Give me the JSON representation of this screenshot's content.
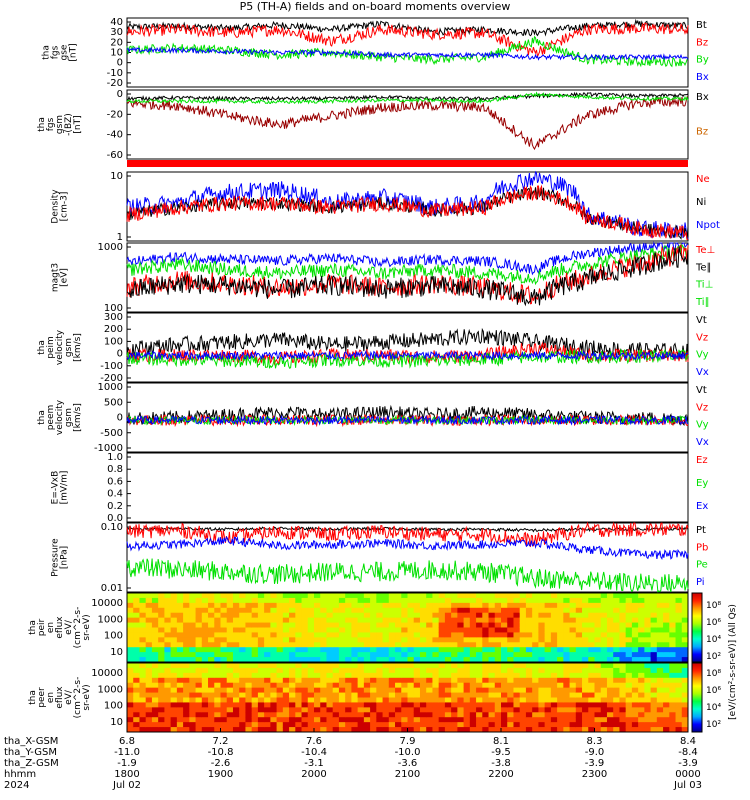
{
  "title": "P5 (TH-A) fields and on-board moments overview",
  "colors": {
    "black": "#000000",
    "red": "#ff0000",
    "green": "#00e000",
    "blue": "#0000ff",
    "darkred": "#990000",
    "orange": "#cc6600"
  },
  "chart_data": [
    {
      "type": "line",
      "panel": "fgs-gse",
      "ylabel": [
        "tha",
        "fgs",
        "gse",
        "[nT]"
      ],
      "yticks": [
        "40",
        "30",
        "20",
        "10",
        "0",
        "-10",
        "-20"
      ],
      "ylim": [
        -20,
        40
      ],
      "legend": [
        {
          "label": "Bt",
          "color": "#000000"
        },
        {
          "label": "Bz",
          "color": "#ff0000"
        },
        {
          "label": "By",
          "color": "#00e000"
        },
        {
          "label": "Bx",
          "color": "#0000ff"
        }
      ],
      "series": [
        {
          "name": "Bt",
          "color": "#000000",
          "base": [
            32,
            33,
            31,
            34,
            30,
            35,
            28,
            30,
            27,
            33,
            35,
            33
          ],
          "noise": 3
        },
        {
          "name": "Bz",
          "color": "#ff0000",
          "base": [
            28,
            30,
            27,
            30,
            20,
            30,
            26,
            27,
            10,
            30,
            31,
            30
          ],
          "noise": 5
        },
        {
          "name": "By",
          "color": "#00e000",
          "base": [
            12,
            14,
            12,
            8,
            10,
            6,
            4,
            6,
            20,
            4,
            2,
            2
          ],
          "noise": 4
        },
        {
          "name": "Bx",
          "color": "#0000ff",
          "base": [
            12,
            12,
            11,
            10,
            10,
            8,
            8,
            8,
            6,
            6,
            6,
            6
          ],
          "noise": 2
        }
      ]
    },
    {
      "type": "line",
      "panel": "fgs-gsm",
      "ylabel": [
        "tha",
        "fgs",
        "gsm",
        "-(BZ)",
        "[nT]"
      ],
      "yticks": [
        "0",
        "-20",
        "-40",
        "-60"
      ],
      "ylim": [
        -70,
        10
      ],
      "legend": [
        {
          "label": "Bx",
          "color": "#000000"
        },
        {
          "label": "Bz",
          "color": "#cc6600"
        }
      ],
      "series": [
        {
          "name": "Bx",
          "color": "#000000",
          "base": [
            0,
            1,
            0,
            0,
            0,
            2,
            0,
            0,
            3,
            5,
            3,
            4
          ],
          "noise": 2
        },
        {
          "name": "Bz",
          "color": "#990000",
          "base": [
            -5,
            -8,
            -20,
            -30,
            -20,
            -10,
            -8,
            -10,
            -55,
            -20,
            -5,
            -3
          ],
          "noise": 6
        },
        {
          "name": "Bz2",
          "color": "#00e000",
          "base": [
            -3,
            -3,
            -3,
            -4,
            -3,
            -2,
            -2,
            -3,
            5,
            2,
            0,
            0
          ],
          "noise": 2
        }
      ]
    },
    {
      "type": "line",
      "panel": "density",
      "ylabel": [
        "Density",
        "[cm-3]"
      ],
      "yticks": [
        "10",
        "1"
      ],
      "ylim": [
        0.1,
        50
      ],
      "log": true,
      "legend": [
        {
          "label": "Ne",
          "color": "#ff0000"
        },
        {
          "label": "Ni",
          "color": "#000000"
        },
        {
          "label": "Npot",
          "color": "#0000ff"
        }
      ],
      "series": [
        {
          "name": "Npot",
          "color": "#0000ff",
          "base": [
            2,
            3,
            8,
            10,
            3,
            5,
            2,
            3,
            30,
            1,
            0.3,
            0.25
          ],
          "noise": 0.35
        },
        {
          "name": "Ni",
          "color": "#000000",
          "base": [
            1,
            2,
            3,
            3,
            2,
            3,
            1.5,
            2,
            8,
            0.8,
            0.3,
            0.2
          ],
          "noise": 0.25
        },
        {
          "name": "Ne",
          "color": "#ff0000",
          "base": [
            1,
            2,
            3,
            3,
            2,
            3,
            1.5,
            2,
            8,
            0.8,
            0.3,
            0.2
          ],
          "noise": 0.3
        }
      ]
    },
    {
      "type": "line",
      "panel": "temperature",
      "ylabel": [
        "magt3",
        "[eV]"
      ],
      "yticks": [
        "1000",
        "100"
      ],
      "ylim": [
        30,
        3000
      ],
      "log": true,
      "legend": [
        {
          "label": "Te⊥",
          "color": "#ff0000"
        },
        {
          "label": "Te∥",
          "color": "#000000"
        },
        {
          "label": "Ti⊥",
          "color": "#00e000"
        },
        {
          "label": "Ti∥",
          "color": "#00e000"
        }
      ],
      "series": [
        {
          "name": "Ti",
          "color": "#0000ff",
          "base": [
            800,
            1200,
            1000,
            900,
            1100,
            800,
            1000,
            900,
            500,
            1500,
            2200,
            2500
          ],
          "noise": 0.15
        },
        {
          "name": "Ti2",
          "color": "#00e000",
          "base": [
            500,
            700,
            500,
            400,
            500,
            400,
            500,
            400,
            300,
            700,
            1300,
            1800
          ],
          "noise": 0.2
        },
        {
          "name": "Te",
          "color": "#ff0000",
          "base": [
            150,
            250,
            200,
            150,
            200,
            150,
            200,
            150,
            80,
            300,
            700,
            1500
          ],
          "noise": 0.3
        },
        {
          "name": "Te2",
          "color": "#000000",
          "base": [
            120,
            200,
            180,
            130,
            180,
            140,
            170,
            140,
            70,
            250,
            600,
            1300
          ],
          "noise": 0.3
        }
      ]
    },
    {
      "type": "line",
      "panel": "peim-velocity",
      "ylabel": [
        "tha",
        "peim",
        "velocity",
        "gsm",
        "[km/s]"
      ],
      "yticks": [
        "300",
        "200",
        "100",
        "0",
        "-100",
        "-200"
      ],
      "ylim": [
        -200,
        320
      ],
      "legend": [
        {
          "label": "Vt",
          "color": "#000000"
        },
        {
          "label": "Vz",
          "color": "#ff0000"
        },
        {
          "label": "Vy",
          "color": "#00e000"
        },
        {
          "label": "Vx",
          "color": "#0000ff"
        }
      ],
      "series": [
        {
          "name": "Vt",
          "color": "#000000",
          "base": [
            50,
            80,
            100,
            120,
            80,
            100,
            120,
            150,
            100,
            60,
            40,
            30
          ],
          "noise": 60
        },
        {
          "name": "Vz",
          "color": "#ff0000",
          "base": [
            0,
            0,
            0,
            -20,
            0,
            0,
            -10,
            0,
            60,
            0,
            0,
            0
          ],
          "noise": 50
        },
        {
          "name": "Vy",
          "color": "#00e000",
          "base": [
            -20,
            -30,
            -40,
            -50,
            -30,
            -40,
            -40,
            -30,
            -10,
            -10,
            -5,
            -5
          ],
          "noise": 50
        },
        {
          "name": "Vx",
          "color": "#0000ff",
          "base": [
            0,
            0,
            0,
            0,
            0,
            0,
            0,
            0,
            0,
            0,
            0,
            0
          ],
          "noise": 30
        }
      ]
    },
    {
      "type": "line",
      "panel": "peem-velocity",
      "ylabel": [
        "tha",
        "peem",
        "velocity",
        "gsm",
        "[km/s]"
      ],
      "yticks": [
        "1000",
        "500",
        "0",
        "-500",
        "-1000"
      ],
      "ylim": [
        -1200,
        1400
      ],
      "legend": [
        {
          "label": "Vt",
          "color": "#000000"
        },
        {
          "label": "Vz",
          "color": "#ff0000"
        },
        {
          "label": "Vy",
          "color": "#00e000"
        },
        {
          "label": "Vx",
          "color": "#0000ff"
        }
      ],
      "series": [
        {
          "name": "Vt",
          "color": "#000000",
          "base": [
            50,
            100,
            200,
            300,
            200,
            300,
            200,
            300,
            200,
            100,
            80,
            60
          ],
          "noise": 250
        },
        {
          "name": "Vz",
          "color": "#ff0000",
          "base": [
            0,
            0,
            0,
            0,
            0,
            0,
            0,
            0,
            0,
            0,
            0,
            0
          ],
          "noise": 200
        },
        {
          "name": "Vy",
          "color": "#00e000",
          "base": [
            0,
            0,
            0,
            0,
            0,
            0,
            0,
            0,
            0,
            0,
            0,
            0
          ],
          "noise": 150
        },
        {
          "name": "Vx",
          "color": "#0000ff",
          "base": [
            0,
            0,
            0,
            0,
            0,
            0,
            0,
            0,
            0,
            0,
            0,
            0
          ],
          "noise": 150
        }
      ]
    },
    {
      "type": "line",
      "panel": "efield",
      "ylabel": [
        "E=-VxB",
        "[mV/m]"
      ],
      "yticks": [
        "1.0",
        "0.8",
        "0.6",
        "0.4",
        "0.2",
        "0.0"
      ],
      "ylim": [
        0,
        1
      ],
      "legend": [
        {
          "label": "Ez",
          "color": "#ff0000"
        },
        {
          "label": "Ey",
          "color": "#00e000"
        },
        {
          "label": "Ex",
          "color": "#0000ff"
        }
      ],
      "series": []
    },
    {
      "type": "line",
      "panel": "pressure",
      "ylabel": [
        "Pressure",
        "[nPa]"
      ],
      "yticks": [
        "0.10",
        "0.01"
      ],
      "ylim": [
        0.002,
        0.5
      ],
      "log": true,
      "legend": [
        {
          "label": "Pt",
          "color": "#000000"
        },
        {
          "label": "Pb",
          "color": "#ff0000"
        },
        {
          "label": "Pe",
          "color": "#00e000"
        },
        {
          "label": "Pi",
          "color": "#0000ff"
        }
      ],
      "series": [
        {
          "name": "Pt",
          "color": "#000000",
          "base": [
            0.3,
            0.32,
            0.3,
            0.33,
            0.3,
            0.32,
            0.3,
            0.3,
            0.28,
            0.3,
            0.31,
            0.32
          ],
          "noise": 0.05
        },
        {
          "name": "Pb",
          "color": "#ff0000",
          "base": [
            0.25,
            0.28,
            0.15,
            0.25,
            0.2,
            0.25,
            0.2,
            0.2,
            0.12,
            0.28,
            0.3,
            0.3
          ],
          "noise": 0.25
        },
        {
          "name": "Pi",
          "color": "#0000ff",
          "base": [
            0.08,
            0.09,
            0.12,
            0.08,
            0.09,
            0.1,
            0.08,
            0.09,
            0.1,
            0.06,
            0.04,
            0.04
          ],
          "noise": 0.15
        },
        {
          "name": "Pe",
          "color": "#00e000",
          "base": [
            0.015,
            0.012,
            0.01,
            0.008,
            0.01,
            0.01,
            0.012,
            0.01,
            0.006,
            0.005,
            0.004,
            0.004
          ],
          "noise": 0.35
        }
      ]
    },
    {
      "type": "heatmap",
      "panel": "peir-eflux",
      "ylabel": [
        "tha",
        "peir",
        "en",
        "eflux",
        "eV/",
        "(cm^2-s-",
        "sr-eV)"
      ],
      "yticks": [
        "10000",
        "1000",
        "100",
        "10"
      ]
    },
    {
      "type": "heatmap",
      "panel": "peer-eflux",
      "ylabel": [
        "tha",
        "peer",
        "en",
        "eflux",
        "eV/",
        "(cm^2-s-",
        "sr-eV)"
      ],
      "yticks": [
        "10000",
        "1000",
        "100",
        "10"
      ]
    }
  ],
  "colorbar": {
    "label": "[eV/(cm²-s-sr-eV)] (All Qs)",
    "ticks": [
      "10⁸",
      "10⁶",
      "10⁴",
      "10²",
      "10⁸",
      "10⁶",
      "10⁴",
      "10²"
    ]
  },
  "xaxis": {
    "rows": [
      {
        "name": "tha_X-GSM",
        "values": [
          "6.8",
          "7.2",
          "7.6",
          "7.9",
          "8.1",
          "8.3",
          "8.4"
        ]
      },
      {
        "name": "tha_Y-GSM",
        "values": [
          "-11.0",
          "-10.8",
          "-10.4",
          "-10.0",
          "-9.5",
          "-9.0",
          "-8.4"
        ]
      },
      {
        "name": "tha_Z-GSM",
        "values": [
          "-1.9",
          "-2.6",
          "-3.1",
          "-3.6",
          "-3.8",
          "-3.9",
          "-3.9"
        ]
      },
      {
        "name": "hhmm",
        "values": [
          "1800",
          "1900",
          "2000",
          "2100",
          "2200",
          "2300",
          "0000"
        ]
      },
      {
        "name": "2024",
        "values": [
          "Jul 02",
          "",
          "",
          "",
          "",
          "",
          "Jul 03"
        ]
      }
    ]
  }
}
